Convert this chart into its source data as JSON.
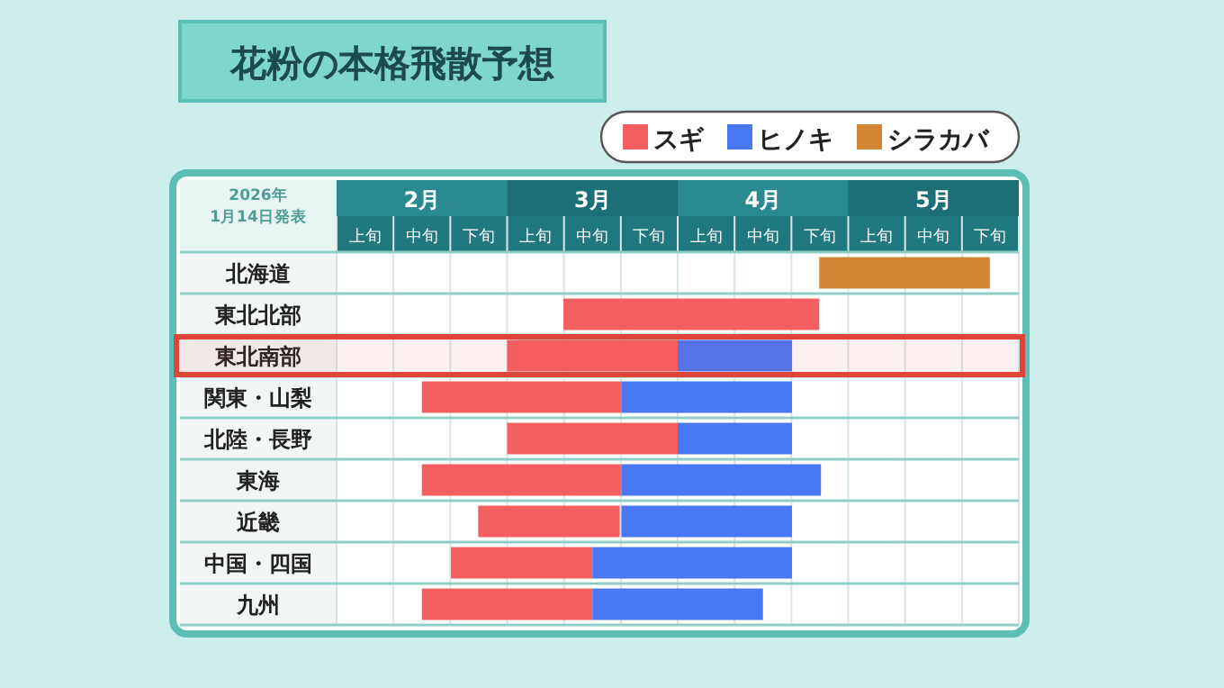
{
  "chart_data": {
    "type": "bar",
    "orientation": "horizontal",
    "title": "花粉の本格飛散予想",
    "annotations": [
      "2026年 1月14日発表",
      "上旬",
      "中旬",
      "下旬",
      "上旬",
      "中旬",
      "下旬",
      "上旬",
      "中旬",
      "下旬",
      "上旬",
      "中旬",
      "下旬"
    ],
    "categories": [
      "北海道",
      "東北北部",
      "東北南部",
      "関東・山梨",
      "北陸・長野",
      "東海",
      "近畿",
      "中国・四国",
      "九州"
    ],
    "series": [
      {
        "name": "スギ",
        "color": "#f65f62",
        "base": [
          null,
          2.83,
          2.5,
          2.0,
          2.5,
          2.0,
          2.33,
          2.17,
          2.0
        ],
        "values": [
          null,
          1.5,
          1.0,
          1.17,
          1.0,
          1.17,
          0.83,
          0.83,
          1.0
        ]
      },
      {
        "name": "ヒノキ",
        "color": "#4a78f5",
        "base": [
          null,
          null,
          3.5,
          3.17,
          3.5,
          3.17,
          3.17,
          3.0,
          3.0
        ],
        "values": [
          null,
          null,
          0.67,
          1.0,
          0.67,
          1.17,
          1.0,
          1.17,
          1.0
        ]
      },
      {
        "name": "シラカバ",
        "color": "#d38531",
        "base": [
          4.33,
          null,
          null,
          null,
          null,
          null,
          null,
          null,
          null
        ],
        "values": [
          1.0,
          null,
          null,
          null,
          null,
          null,
          null,
          null,
          null
        ]
      }
    ],
    "xlim": [
      1.5,
      5.5
    ],
    "xticks": [
      {
        "value": 2,
        "label": "2月"
      },
      {
        "value": 3,
        "label": "3月"
      },
      {
        "value": 4,
        "label": "4月"
      },
      {
        "value": 5,
        "label": "5月"
      }
    ],
    "bands": [
      {
        "axis": "y",
        "from": "東北南部",
        "to": "東北南部",
        "color": "#e0453a"
      }
    ],
    "grid": true,
    "legend": "top right"
  }
}
